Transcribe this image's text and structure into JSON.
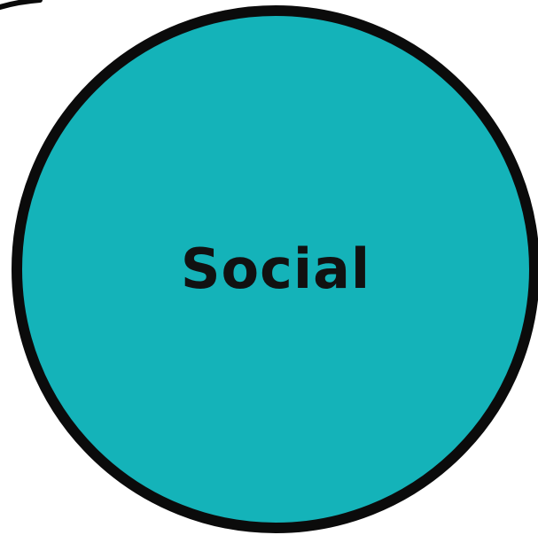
{
  "diagram": {
    "circle": {
      "label": "Social",
      "fill_color": "#14b3b9",
      "stroke_color": "#0b0b0b"
    },
    "edge_arc": {
      "stroke_color": "#0b0b0b"
    }
  }
}
